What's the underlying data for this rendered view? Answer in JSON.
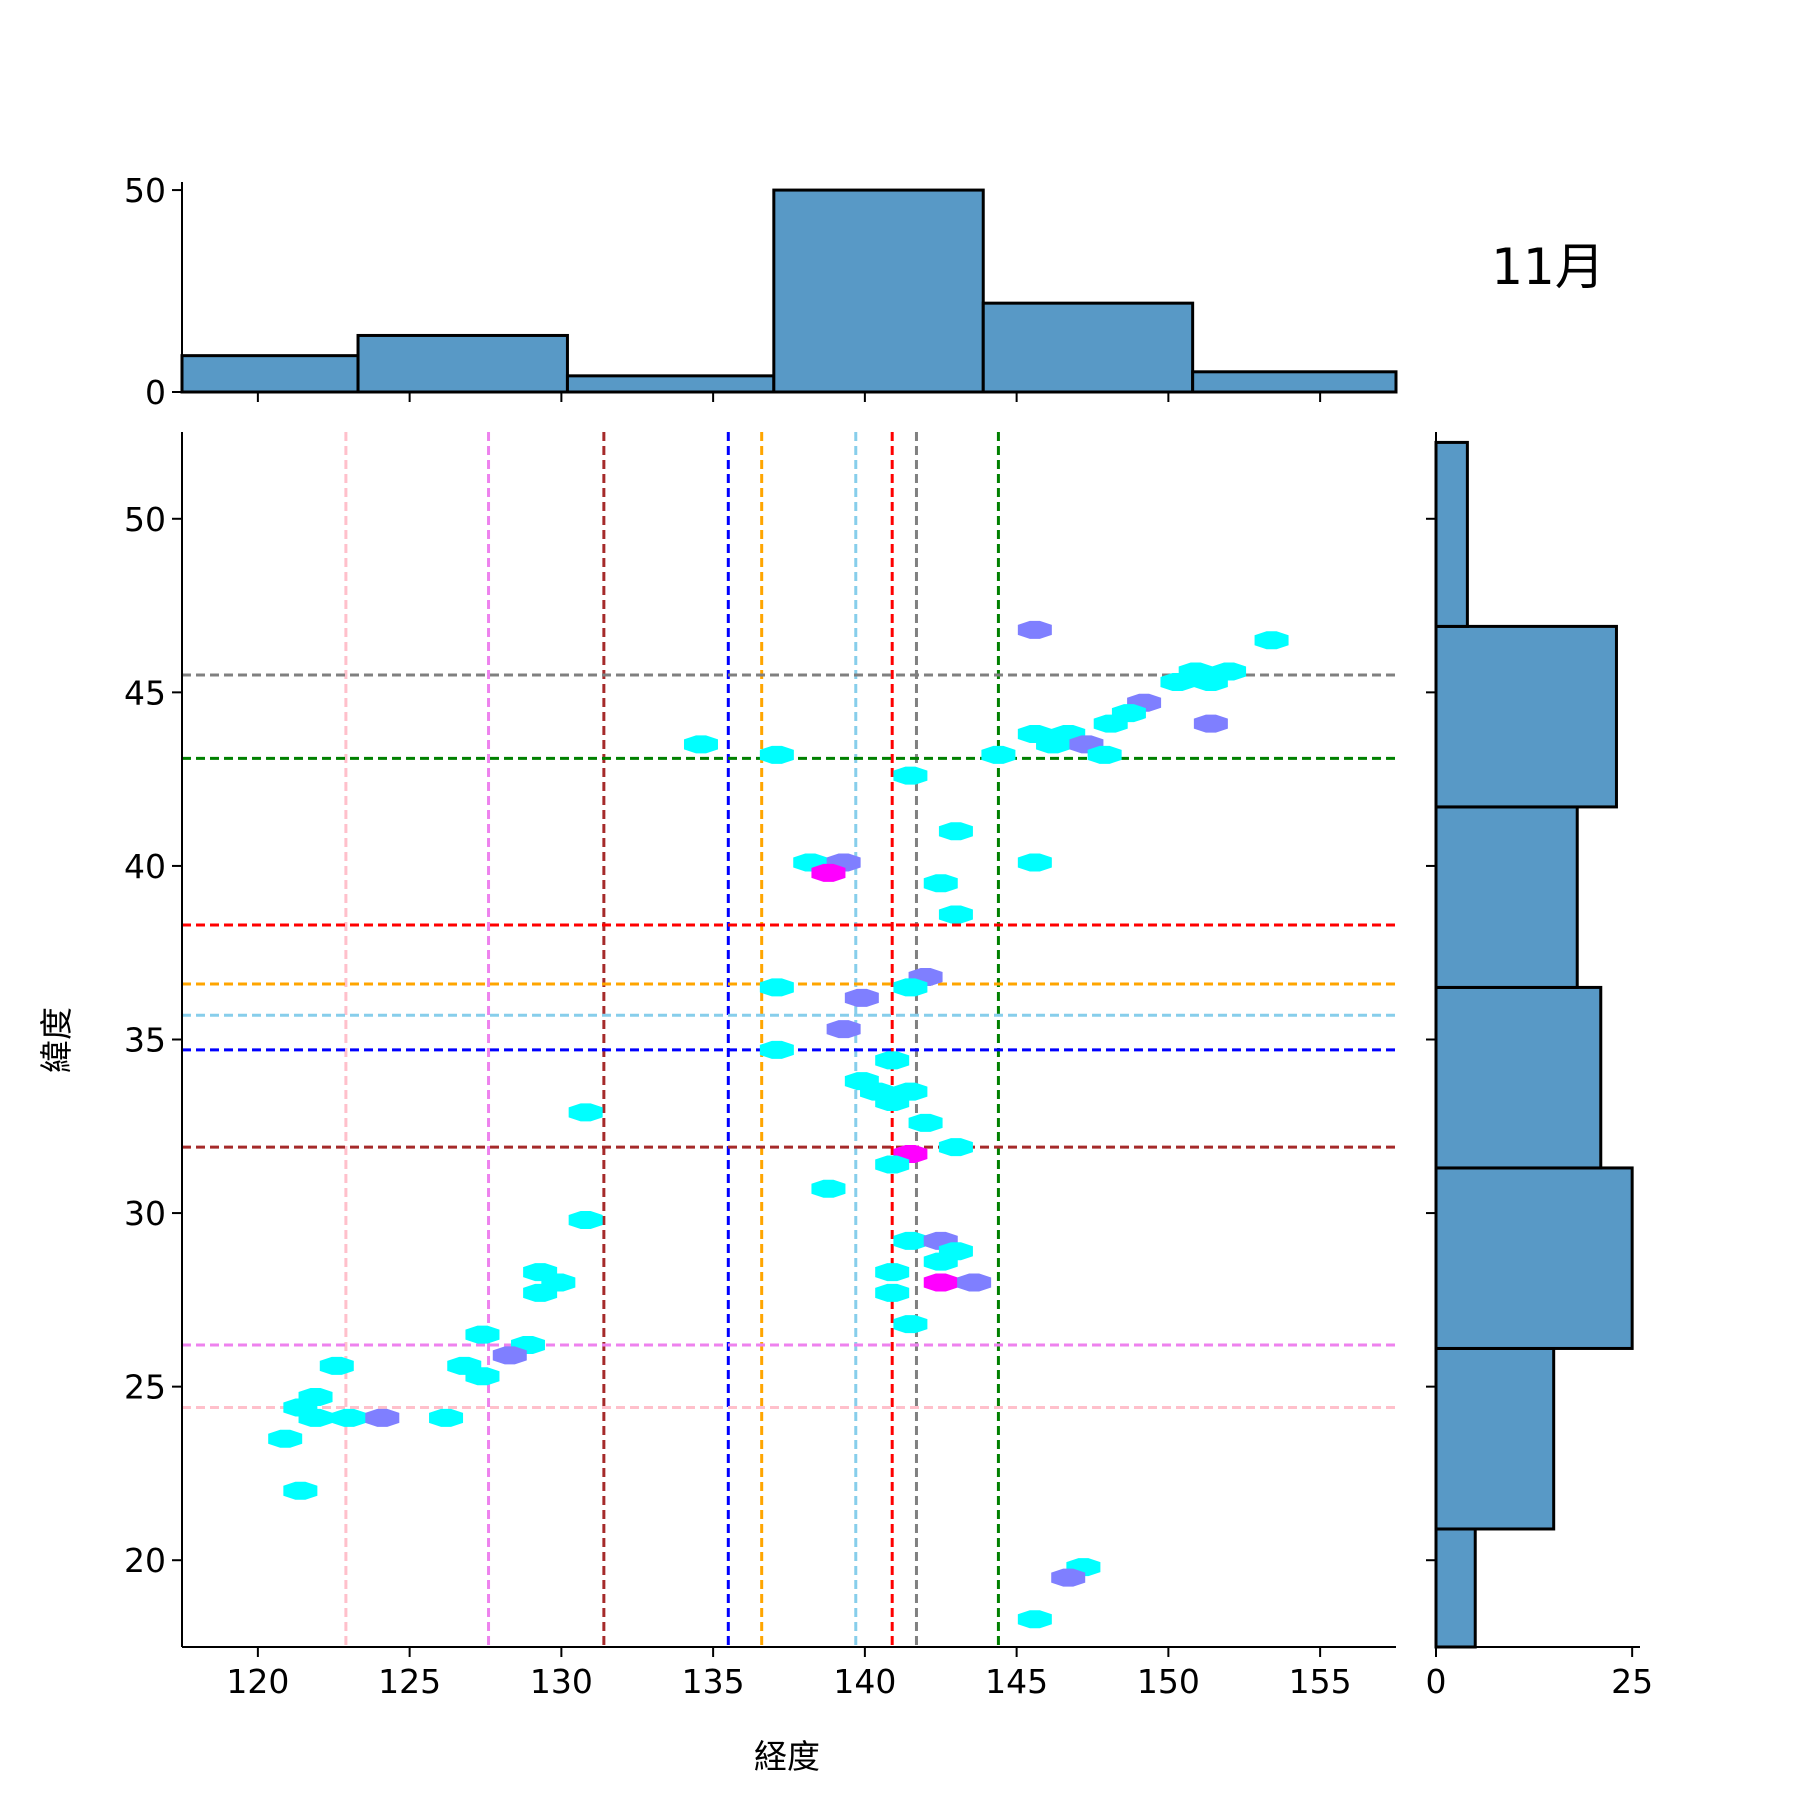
{
  "title": "11月",
  "chart_data": {
    "type": "scatter",
    "subtype": "hexbin joint plot with marginal histograms",
    "xlabel": "経度",
    "ylabel": "緯度",
    "xlim": [
      117.5,
      157.5
    ],
    "ylim": [
      17.5,
      52.5
    ],
    "xticks": [
      120,
      125,
      130,
      135,
      140,
      145,
      150,
      155
    ],
    "yticks": [
      20,
      25,
      30,
      35,
      40,
      45,
      50
    ],
    "hex_colors": {
      "1": "#00ffff",
      "2": "#7f7fff",
      "3": "#ff00ff"
    },
    "hexbins": [
      {
        "x": 145.6,
        "y": 46.8,
        "count": 2
      },
      {
        "x": 153.4,
        "y": 46.5,
        "count": 1
      },
      {
        "x": 150.9,
        "y": 45.6,
        "count": 1
      },
      {
        "x": 152.0,
        "y": 45.6,
        "count": 1
      },
      {
        "x": 150.3,
        "y": 45.3,
        "count": 1
      },
      {
        "x": 151.4,
        "y": 45.3,
        "count": 1
      },
      {
        "x": 149.2,
        "y": 44.7,
        "count": 2
      },
      {
        "x": 148.7,
        "y": 44.4,
        "count": 1
      },
      {
        "x": 148.1,
        "y": 44.1,
        "count": 1
      },
      {
        "x": 151.4,
        "y": 44.1,
        "count": 2
      },
      {
        "x": 145.6,
        "y": 43.8,
        "count": 1
      },
      {
        "x": 146.7,
        "y": 43.8,
        "count": 1
      },
      {
        "x": 146.2,
        "y": 43.5,
        "count": 1
      },
      {
        "x": 147.3,
        "y": 43.5,
        "count": 2
      },
      {
        "x": 134.6,
        "y": 43.5,
        "count": 1
      },
      {
        "x": 137.1,
        "y": 43.2,
        "count": 1
      },
      {
        "x": 144.4,
        "y": 43.2,
        "count": 1
      },
      {
        "x": 147.9,
        "y": 43.2,
        "count": 1
      },
      {
        "x": 141.5,
        "y": 42.6,
        "count": 1
      },
      {
        "x": 143.0,
        "y": 41.0,
        "count": 1
      },
      {
        "x": 138.2,
        "y": 40.1,
        "count": 1
      },
      {
        "x": 139.3,
        "y": 40.1,
        "count": 2
      },
      {
        "x": 145.6,
        "y": 40.1,
        "count": 1
      },
      {
        "x": 138.8,
        "y": 39.8,
        "count": 3
      },
      {
        "x": 142.5,
        "y": 39.5,
        "count": 1
      },
      {
        "x": 143.0,
        "y": 38.6,
        "count": 1
      },
      {
        "x": 142.0,
        "y": 36.8,
        "count": 2
      },
      {
        "x": 137.1,
        "y": 36.5,
        "count": 1
      },
      {
        "x": 141.5,
        "y": 36.5,
        "count": 1
      },
      {
        "x": 139.9,
        "y": 36.2,
        "count": 2
      },
      {
        "x": 139.3,
        "y": 35.3,
        "count": 2
      },
      {
        "x": 137.1,
        "y": 34.7,
        "count": 1
      },
      {
        "x": 140.9,
        "y": 34.4,
        "count": 1
      },
      {
        "x": 139.9,
        "y": 33.8,
        "count": 1
      },
      {
        "x": 140.4,
        "y": 33.5,
        "count": 1
      },
      {
        "x": 141.5,
        "y": 33.5,
        "count": 1
      },
      {
        "x": 140.9,
        "y": 33.2,
        "count": 1
      },
      {
        "x": 130.8,
        "y": 32.9,
        "count": 1
      },
      {
        "x": 142.0,
        "y": 32.6,
        "count": 1
      },
      {
        "x": 143.0,
        "y": 31.9,
        "count": 1
      },
      {
        "x": 141.5,
        "y": 31.7,
        "count": 3
      },
      {
        "x": 140.9,
        "y": 31.4,
        "count": 1
      },
      {
        "x": 138.8,
        "y": 30.7,
        "count": 1
      },
      {
        "x": 130.8,
        "y": 29.8,
        "count": 1
      },
      {
        "x": 141.5,
        "y": 29.2,
        "count": 1
      },
      {
        "x": 142.5,
        "y": 29.2,
        "count": 2
      },
      {
        "x": 143.0,
        "y": 28.9,
        "count": 1
      },
      {
        "x": 142.5,
        "y": 28.6,
        "count": 1
      },
      {
        "x": 129.3,
        "y": 28.3,
        "count": 1
      },
      {
        "x": 140.9,
        "y": 28.3,
        "count": 1
      },
      {
        "x": 129.9,
        "y": 28.0,
        "count": 1
      },
      {
        "x": 142.5,
        "y": 28.0,
        "count": 3
      },
      {
        "x": 143.6,
        "y": 28.0,
        "count": 2
      },
      {
        "x": 129.3,
        "y": 27.7,
        "count": 1
      },
      {
        "x": 140.9,
        "y": 27.7,
        "count": 1
      },
      {
        "x": 141.5,
        "y": 26.8,
        "count": 1
      },
      {
        "x": 127.4,
        "y": 26.5,
        "count": 1
      },
      {
        "x": 128.9,
        "y": 26.2,
        "count": 1
      },
      {
        "x": 128.3,
        "y": 25.9,
        "count": 2
      },
      {
        "x": 122.6,
        "y": 25.6,
        "count": 1
      },
      {
        "x": 126.8,
        "y": 25.6,
        "count": 1
      },
      {
        "x": 127.4,
        "y": 25.3,
        "count": 1
      },
      {
        "x": 121.9,
        "y": 24.7,
        "count": 1
      },
      {
        "x": 121.4,
        "y": 24.4,
        "count": 1
      },
      {
        "x": 121.9,
        "y": 24.1,
        "count": 1
      },
      {
        "x": 123.0,
        "y": 24.1,
        "count": 1
      },
      {
        "x": 124.1,
        "y": 24.1,
        "count": 2
      },
      {
        "x": 126.2,
        "y": 24.1,
        "count": 1
      },
      {
        "x": 120.9,
        "y": 23.5,
        "count": 1
      },
      {
        "x": 121.4,
        "y": 22.0,
        "count": 1
      },
      {
        "x": 147.2,
        "y": 19.8,
        "count": 1
      },
      {
        "x": 146.7,
        "y": 19.5,
        "count": 2
      },
      {
        "x": 145.6,
        "y": 18.3,
        "count": 1
      }
    ],
    "vlines": [
      {
        "x": 122.9,
        "color": "#ffc0cb"
      },
      {
        "x": 127.6,
        "color": "#ee82ee"
      },
      {
        "x": 131.4,
        "color": "#a52a2a"
      },
      {
        "x": 135.5,
        "color": "#0000ff"
      },
      {
        "x": 136.6,
        "color": "#ffa500"
      },
      {
        "x": 139.7,
        "color": "#87ceeb"
      },
      {
        "x": 140.9,
        "color": "#ff0000"
      },
      {
        "x": 141.7,
        "color": "#808080"
      },
      {
        "x": 144.4,
        "color": "#008000"
      }
    ],
    "hlines": [
      {
        "y": 45.5,
        "color": "#808080"
      },
      {
        "y": 43.1,
        "color": "#008000"
      },
      {
        "y": 38.3,
        "color": "#ff0000"
      },
      {
        "y": 36.6,
        "color": "#ffa500"
      },
      {
        "y": 35.7,
        "color": "#87ceeb"
      },
      {
        "y": 34.7,
        "color": "#0000ff"
      },
      {
        "y": 31.9,
        "color": "#a52a2a"
      },
      {
        "y": 26.2,
        "color": "#ee82ee"
      },
      {
        "y": 24.4,
        "color": "#ffc0cb"
      }
    ],
    "x_histogram": {
      "ylim": [
        0,
        52
      ],
      "yticks": [
        0,
        50
      ],
      "bins": [
        {
          "start": 117.5,
          "end": 123.3,
          "count": 9
        },
        {
          "start": 123.3,
          "end": 130.2,
          "count": 14
        },
        {
          "start": 130.2,
          "end": 137.0,
          "count": 4
        },
        {
          "start": 137.0,
          "end": 143.9,
          "count": 50
        },
        {
          "start": 143.9,
          "end": 150.8,
          "count": 22
        },
        {
          "start": 150.8,
          "end": 157.5,
          "count": 5
        }
      ]
    },
    "y_histogram": {
      "xlim": [
        0,
        26
      ],
      "xticks": [
        0,
        25
      ],
      "bins": [
        {
          "start": 17.5,
          "end": 20.9,
          "count": 5
        },
        {
          "start": 20.9,
          "end": 26.1,
          "count": 15
        },
        {
          "start": 26.1,
          "end": 31.3,
          "count": 25
        },
        {
          "start": 31.3,
          "end": 36.5,
          "count": 21
        },
        {
          "start": 36.5,
          "end": 41.7,
          "count": 18
        },
        {
          "start": 41.7,
          "end": 46.9,
          "count": 23
        },
        {
          "start": 46.9,
          "end": 52.2,
          "count": 4
        }
      ]
    },
    "hist_color": "#5899c6"
  }
}
